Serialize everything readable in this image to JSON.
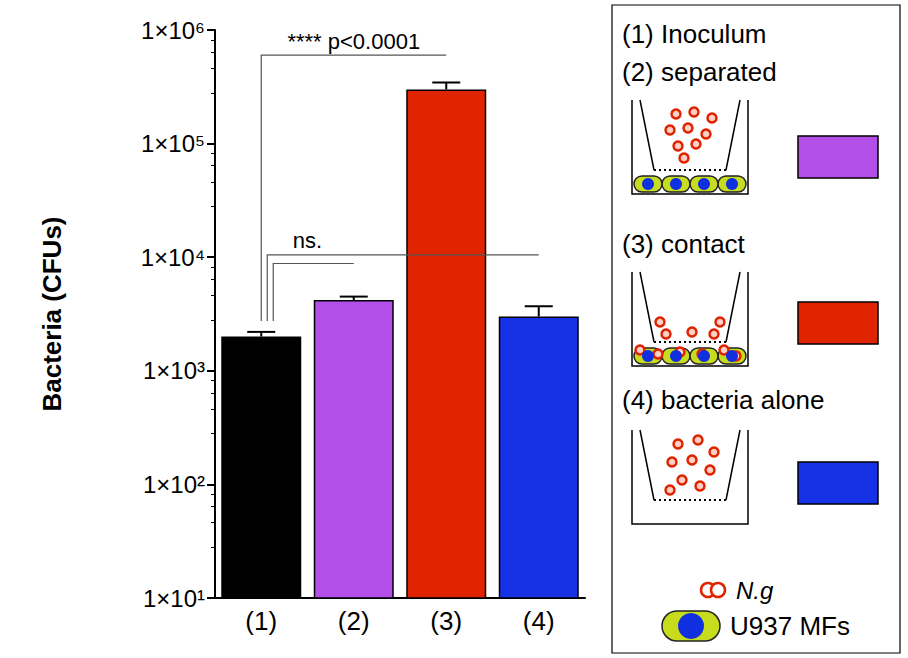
{
  "chart_data": {
    "type": "bar",
    "y_label": "Bacteria (CFUs)",
    "categories": [
      "(1)",
      "(2)",
      "(3)",
      "(4)"
    ],
    "values": [
      2000,
      4200,
      300000,
      3000
    ],
    "errors": [
      200,
      300,
      45000,
      700
    ],
    "colors": [
      "#000000",
      "#b44ee8",
      "#e02400",
      "#1732e6"
    ],
    "log": "y",
    "grid": false,
    "ylim": [
      10,
      1000000
    ],
    "yticks": [
      {
        "value": 10,
        "label": "1×10¹"
      },
      {
        "value": 100,
        "label": "1×10²"
      },
      {
        "value": 1000,
        "label": "1×10³"
      },
      {
        "value": 10000,
        "label": "1×10⁴"
      },
      {
        "value": 100000,
        "label": "1×10⁵"
      },
      {
        "value": 1000000,
        "label": "1×10⁶"
      }
    ],
    "annotations": [
      {
        "from": "(1)",
        "to": "(3)",
        "y": 600000,
        "label": "**** p<0.0001"
      },
      {
        "from": "(1)",
        "to": "(4)",
        "y": 10500,
        "label": "ns."
      },
      {
        "from": "(1)",
        "to": "(2)",
        "y": 8800
      }
    ],
    "legend": "right",
    "legend_items": [
      {
        "label": "(1) Inoculum"
      },
      {
        "label": "(2) separated",
        "color": "#b44ee8"
      },
      {
        "label": "(3) contact",
        "color": "#e02400"
      },
      {
        "label": "(4) bacteria alone",
        "color": "#1732e6"
      }
    ],
    "key": [
      {
        "label": "N.g"
      },
      {
        "label": "U937 MFs"
      }
    ]
  }
}
